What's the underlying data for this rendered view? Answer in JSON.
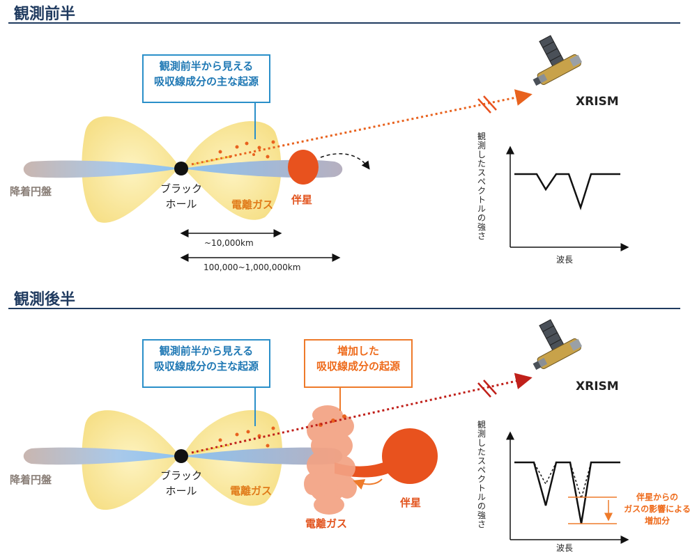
{
  "colors": {
    "title": "#1f3a5f",
    "disk": "#a9c6e6",
    "wind_gas": "#f7e48a",
    "companion": "#e8521e",
    "ray_orange": "#e8621e",
    "ray_red": "#c0201a",
    "callout_blue": "#2a8fc9",
    "callout_orange": "#ee7a2a"
  },
  "first_half": {
    "title": "観測前半",
    "callout_lines": [
      "観測前半から見える",
      "吸収線成分の主な起源"
    ],
    "disk_label": "降着円盤",
    "blackhole_lines": [
      "ブラック",
      "ホール"
    ],
    "gas_label": "電離ガス",
    "companion_label": "伴星",
    "satellite_label": "XRISM",
    "scale_short": "~10,000km",
    "scale_long": "100,000~1,000,000km",
    "y_axis_label": "観測したスペクトルの強さ",
    "x_axis_label": "波長"
  },
  "second_half": {
    "title": "観測後半",
    "callout_lines": [
      "観測前半から見える",
      "吸収線成分の主な起源"
    ],
    "callout2_lines": [
      "増加した",
      "吸収線成分の起源"
    ],
    "disk_label": "降着円盤",
    "blackhole_lines": [
      "ブラック",
      "ホール"
    ],
    "gas_label": "電離ガス",
    "gas2_label": "電離ガス",
    "companion_label": "伴星",
    "satellite_label": "XRISM",
    "y_axis_label": "観測したスペクトルの強さ",
    "x_axis_label": "波長",
    "annotation_lines": [
      "伴星からの",
      "ガスの影響による",
      "増加分"
    ]
  }
}
